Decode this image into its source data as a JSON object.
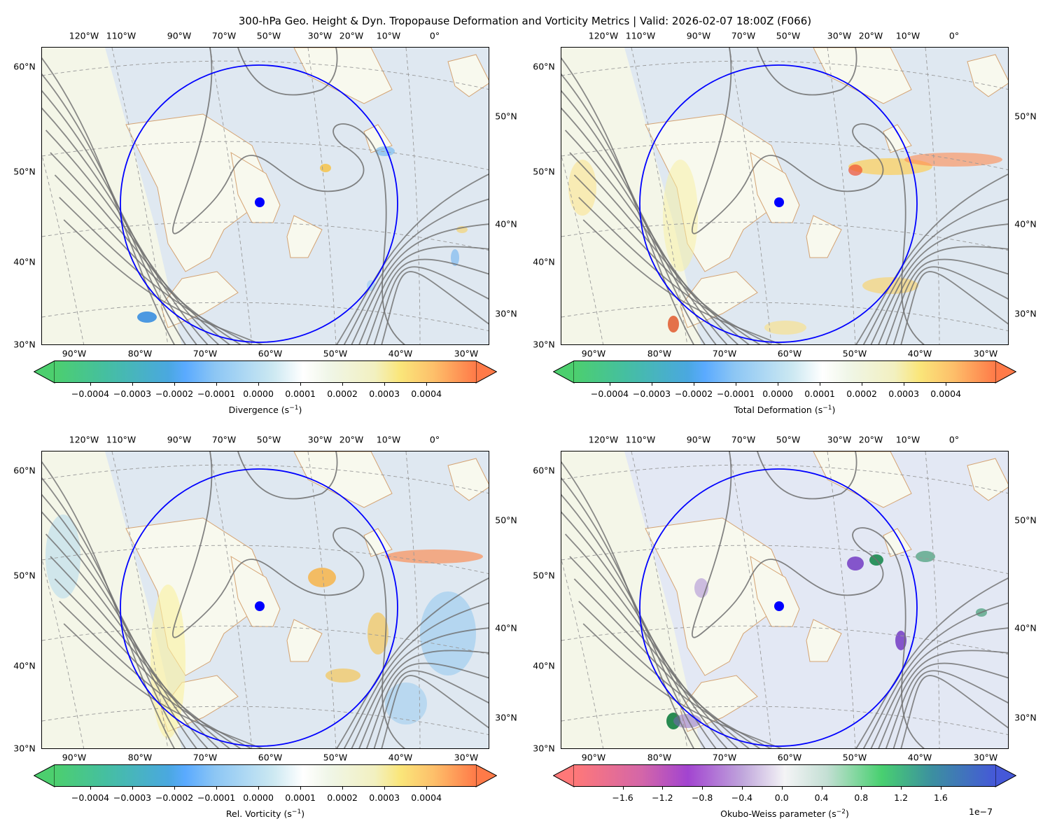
{
  "title": "300-hPa Geo. Height & Dyn. Tropopause Deformation and Vorticity Metrics |  Valid: 2026-02-07 18:00Z (F066)",
  "axes": {
    "top_lon_labels": [
      "120°W",
      "110°W",
      "90°W",
      "70°W",
      "50°W",
      "30°W",
      "20°W",
      "10°W",
      "0°"
    ],
    "left_lat_labels": [
      "60°N",
      "50°N",
      "40°N",
      "30°N"
    ],
    "right_lat_labels": [
      "50°N",
      "40°N",
      "30°N"
    ],
    "bottom_lon_labels": [
      "90°W",
      "80°W",
      "70°W",
      "60°W",
      "50°W",
      "40°W",
      "30°W"
    ]
  },
  "colors": {
    "circle": "#0000ff",
    "contour": "#6e6e6e",
    "coast": "#d4a373",
    "ocean": "#dfe8f1",
    "land": "#f8f9ee"
  },
  "panels": [
    {
      "id": "divergence",
      "colorbar": {
        "label": "Divergence (s",
        "sup": "−1",
        "suffix": ")",
        "ticks": [
          "−0.0004",
          "−0.0003",
          "−0.0002",
          "−0.0001",
          "0.0000",
          "0.0001",
          "0.0002",
          "0.0003",
          "0.0004"
        ],
        "tick_values": [
          -0.0004,
          -0.0003,
          -0.0002,
          -0.0001,
          0,
          0.0001,
          0.0002,
          0.0003,
          0.0004
        ],
        "vmin": -0.000485,
        "vmax": 0.000518,
        "palette": "div",
        "multiplier": ""
      }
    },
    {
      "id": "deformation",
      "colorbar": {
        "label": "Total Deformation (s",
        "sup": "−1",
        "suffix": ")",
        "ticks": [
          "−0.0004",
          "−0.0003",
          "−0.0002",
          "−0.0001",
          "0.0000",
          "0.0001",
          "0.0002",
          "0.0003",
          "0.0004"
        ],
        "tick_values": [
          -0.0004,
          -0.0003,
          -0.0002,
          -0.0001,
          0,
          0.0001,
          0.0002,
          0.0003,
          0.0004
        ],
        "vmin": -0.000485,
        "vmax": 0.000518,
        "palette": "div",
        "multiplier": ""
      }
    },
    {
      "id": "vorticity",
      "colorbar": {
        "label": "Rel. Vorticity (s",
        "sup": "−1",
        "suffix": ")",
        "ticks": [
          "−0.0004",
          "−0.0003",
          "−0.0002",
          "−0.0001",
          "0.0000",
          "0.0001",
          "0.0002",
          "0.0003",
          "0.0004"
        ],
        "tick_values": [
          -0.0004,
          -0.0003,
          -0.0002,
          -0.0001,
          0,
          0.0001,
          0.0002,
          0.0003,
          0.0004
        ],
        "vmin": -0.000485,
        "vmax": 0.000518,
        "palette": "div",
        "multiplier": ""
      }
    },
    {
      "id": "okubo-weiss",
      "colorbar": {
        "label": "Okubo-Weiss parameter (s",
        "sup": "−2",
        "suffix": ")",
        "ticks": [
          "−1.6",
          "−1.2",
          "−0.8",
          "−0.4",
          "0.0",
          "0.4",
          "0.8",
          "1.2",
          "1.6"
        ],
        "tick_values": [
          -1.6,
          -1.2,
          -0.8,
          -0.4,
          0,
          0.4,
          0.8,
          1.2,
          1.6
        ],
        "vmin": -2.09,
        "vmax": 2.15,
        "palette": "ow",
        "multiplier": "1e−7"
      }
    }
  ]
}
